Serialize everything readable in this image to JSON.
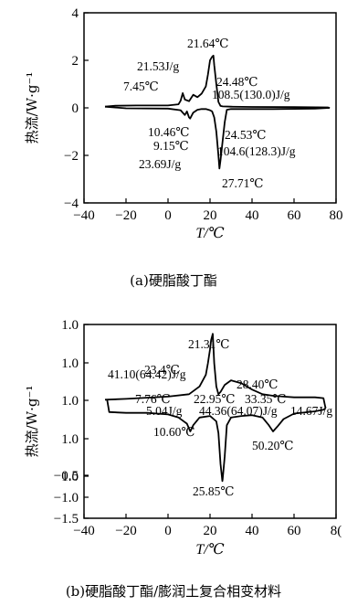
{
  "chart_data": [
    {
      "type": "line",
      "xlabel": "T/℃",
      "ylabel": "热流/W·g⁻¹",
      "xlim": [
        -40,
        80
      ],
      "ylim": [
        -4,
        4
      ],
      "xticks": [
        "−40",
        "−20",
        "0",
        "20",
        "40",
        "60",
        "80"
      ],
      "yticks": [
        "4",
        "2",
        "0",
        "−2",
        "−4"
      ],
      "grid": false,
      "series": [
        {
          "x": [
            -30,
            -25,
            -15,
            0,
            5,
            6,
            7,
            8,
            10,
            12,
            14,
            16,
            18,
            19,
            20,
            21,
            21.6,
            22,
            23,
            24,
            25,
            26,
            30,
            40,
            60,
            76,
            77
          ],
          "y": [
            0.05,
            0.09,
            0.1,
            0.1,
            0.15,
            0.3,
            0.62,
            0.35,
            0.28,
            0.55,
            0.45,
            0.6,
            0.9,
            1.4,
            2.0,
            2.15,
            2.2,
            1.8,
            1.0,
            0.25,
            0.08,
            0.06,
            0.05,
            0.04,
            0.03,
            0.02,
            0.0
          ]
        },
        {
          "x": [
            77,
            70,
            50,
            40,
            30,
            28,
            27,
            26,
            25,
            24.5,
            24,
            23,
            22,
            21,
            20,
            18,
            16,
            14,
            12,
            10.5,
            10,
            9,
            8,
            6,
            0,
            -20,
            -30
          ],
          "y": [
            0.0,
            -0.03,
            -0.05,
            -0.05,
            -0.05,
            -0.08,
            -0.6,
            -1.4,
            -2.2,
            -2.55,
            -2.0,
            -1.0,
            -0.4,
            -0.15,
            -0.1,
            -0.05,
            -0.05,
            -0.08,
            -0.2,
            -0.45,
            -0.4,
            -0.15,
            -0.3,
            -0.1,
            -0.03,
            -0.02,
            0.05
          ]
        }
      ],
      "annotations": [
        "21.64℃",
        "21.53J/g",
        "7.45℃",
        "24.48℃",
        "108.5(130.0)J/g",
        "10.46℃",
        "9.15℃",
        "24.53℃",
        "104.6(128.3)J/g",
        "23.69J/g",
        "27.71℃"
      ]
    },
    {
      "type": "line",
      "xlabel": "T/℃",
      "ylabel": "热流/W·g⁻¹",
      "xlim": [
        -40,
        80
      ],
      "ylim": [
        -1.5,
        1.0
      ],
      "xticks": [
        "−40",
        "−20",
        "0",
        "20",
        "40",
        "60",
        "8("
      ],
      "yticks": [
        "1.0",
        "1.0",
        "1.0",
        "1.0",
        "1.0",
        "−0.5",
        "−1.0",
        "−1.5"
      ],
      "grid": false,
      "series": [
        {
          "x": [
            -30,
            -20,
            0,
            10,
            15,
            18,
            19,
            20,
            20.5,
            21.3,
            22,
            23,
            24,
            25,
            27,
            30,
            35,
            40,
            45,
            50,
            55,
            60,
            70,
            74,
            75
          ],
          "y": [
            0.03,
            0.04,
            0.07,
            0.1,
            0.2,
            0.35,
            0.5,
            0.68,
            0.8,
            0.88,
            0.5,
            0.2,
            0.1,
            0.13,
            0.22,
            0.28,
            0.24,
            0.16,
            0.1,
            0.08,
            0.07,
            0.06,
            0.06,
            0.05,
            -0.08
          ]
        },
        {
          "x": [
            75,
            74,
            70,
            60,
            55,
            52,
            50,
            48,
            45,
            40,
            35,
            30,
            28,
            27,
            26,
            25.85,
            25,
            24,
            23,
            20,
            15,
            12,
            10.6,
            9,
            5,
            0,
            -10,
            -20,
            -28,
            -29
          ],
          "y": [
            -0.08,
            -0.1,
            -0.12,
            -0.15,
            -0.22,
            -0.32,
            -0.38,
            -0.3,
            -0.2,
            -0.17,
            -0.18,
            -0.2,
            -0.3,
            -0.7,
            -1.0,
            -1.02,
            -0.8,
            -0.4,
            -0.25,
            -0.18,
            -0.2,
            -0.3,
            -0.38,
            -0.28,
            -0.2,
            -0.16,
            -0.14,
            -0.14,
            -0.13,
            0.03
          ]
        }
      ],
      "annotations": [
        "21.31℃",
        "23.4℃",
        "28.40℃",
        "41.10(64.42)J/g",
        "7.76℃",
        "22.95℃",
        "33.35℃",
        "5.04J/g",
        "44.36(64.07)J/g",
        "14.67J/g",
        "10.60℃",
        "50.20℃",
        "25.85℃"
      ]
    }
  ],
  "captions": {
    "a": "(a)硬脂酸丁酯",
    "b": "(b)硬脂酸丁酯/膨润土复合相变材料"
  }
}
